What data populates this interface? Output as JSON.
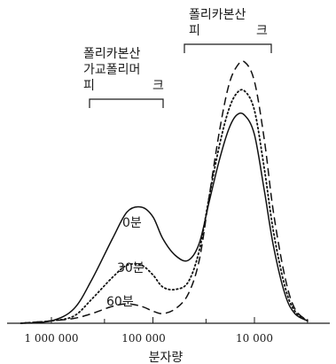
{
  "chart_data": {
    "type": "line",
    "xlabel": "분자량",
    "ylabel": "",
    "x_scale": "log",
    "x_reversed": true,
    "xlim": [
      3000000,
      2000
    ],
    "ylim": [
      0,
      1
    ],
    "x_ticks": [
      1000000,
      100000,
      10000
    ],
    "x_tick_labels": [
      "1 000 000",
      "100 000",
      "10 000"
    ],
    "grid": false,
    "annotations": {
      "polycarbonate_peak_line1": "폴리카본산",
      "polycarbonate_peak_line2_left": "피",
      "polycarbonate_peak_line2_right": "크",
      "crosslinked_peak_line1": "폴리카본산",
      "crosslinked_peak_line2": "가교폴리머",
      "crosslinked_peak_line3_left": "피",
      "crosslinked_peak_line3_right": "크"
    },
    "series": [
      {
        "name": "0분",
        "style": "solid",
        "x": [
          2000000,
          1000000,
          600000,
          400000,
          250000,
          180000,
          130000,
          100000,
          80000,
          60000,
          45000,
          35000,
          28000,
          22000,
          18000,
          15000,
          12500,
          10000,
          8000,
          6500,
          5000,
          4000,
          3000
        ],
        "y": [
          0,
          0.01,
          0.06,
          0.18,
          0.35,
          0.46,
          0.48,
          0.44,
          0.35,
          0.28,
          0.26,
          0.33,
          0.5,
          0.68,
          0.8,
          0.86,
          0.86,
          0.78,
          0.55,
          0.32,
          0.12,
          0.04,
          0.01
        ]
      },
      {
        "name": "30분",
        "style": "dotted",
        "x": [
          2000000,
          1000000,
          600000,
          400000,
          250000,
          180000,
          130000,
          100000,
          80000,
          60000,
          45000,
          35000,
          28000,
          22000,
          18000,
          15000,
          12500,
          10000,
          8000,
          6500,
          5000,
          4000,
          3000
        ],
        "y": [
          0,
          0.01,
          0.03,
          0.1,
          0.19,
          0.24,
          0.24,
          0.2,
          0.15,
          0.14,
          0.17,
          0.3,
          0.52,
          0.74,
          0.88,
          0.95,
          0.96,
          0.88,
          0.64,
          0.38,
          0.15,
          0.05,
          0.01
        ]
      },
      {
        "name": "60분",
        "style": "dashed",
        "x": [
          2000000,
          1000000,
          600000,
          400000,
          250000,
          180000,
          130000,
          100000,
          80000,
          60000,
          45000,
          35000,
          28000,
          22000,
          18000,
          15000,
          12500,
          10000,
          8000,
          6500,
          5000,
          4000,
          3000
        ],
        "y": [
          0,
          0.01,
          0.02,
          0.04,
          0.07,
          0.08,
          0.07,
          0.05,
          0.04,
          0.06,
          0.12,
          0.26,
          0.52,
          0.8,
          0.98,
          1.06,
          1.08,
          1.0,
          0.76,
          0.46,
          0.19,
          0.06,
          0.01
        ]
      }
    ]
  }
}
